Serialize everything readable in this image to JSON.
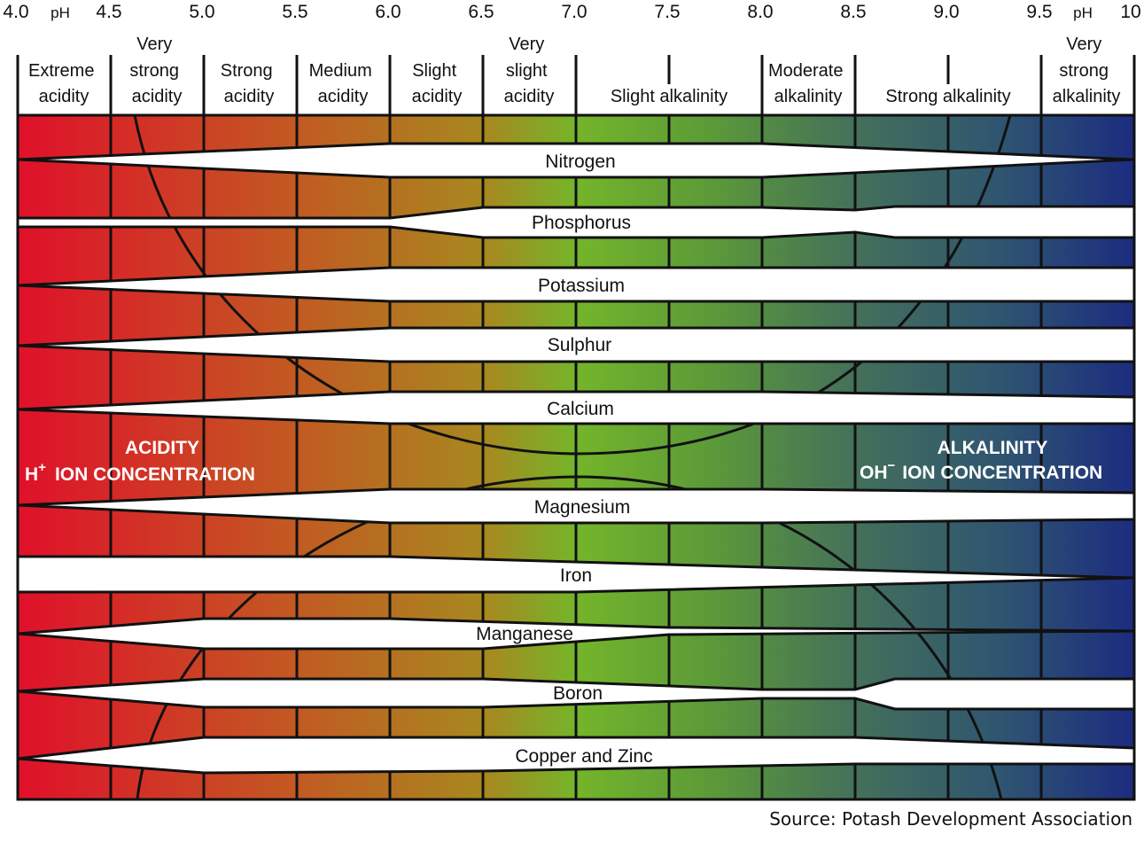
{
  "ph_ticks": [
    "4.0",
    "4.5",
    "5.0",
    "5.5",
    "6.0",
    "6.5",
    "7.0",
    "7.5",
    "8.0",
    "8.5",
    "9.0",
    "9.5",
    "10"
  ],
  "ph_label": "pH",
  "categories": [
    {
      "lines": [
        "Extreme",
        "acidity"
      ]
    },
    {
      "lines": [
        "Very",
        "strong",
        "acidity"
      ]
    },
    {
      "lines": [
        "Strong",
        "acidity"
      ]
    },
    {
      "lines": [
        "Medium",
        "acidity"
      ]
    },
    {
      "lines": [
        "Slight",
        "acidity"
      ]
    },
    {
      "lines": [
        "Very",
        "slight",
        "acidity"
      ]
    },
    {
      "lines": [
        "Slight alkalinity"
      ]
    },
    {
      "lines": [
        "Moderate",
        "alkalinity"
      ]
    },
    {
      "lines": [
        "Strong alkalinity"
      ]
    },
    {
      "lines": [
        "Very",
        "strong",
        "alkalinity"
      ]
    }
  ],
  "nutrients": [
    "Nitrogen",
    "Phosphorus",
    "Potassium",
    "Sulphur",
    "Calcium",
    "Magnesium",
    "Iron",
    "Manganese",
    "Boron",
    "Copper and Zinc"
  ],
  "acidity": {
    "title": "ACIDITY",
    "ion": "H",
    "ion_sup": "+",
    "suffix": "ION CONCENTRATION"
  },
  "alkalinity": {
    "title": "ALKALINITY",
    "ion": "OH",
    "ion_sup": "−",
    "suffix": "ION CONCENTRATION"
  },
  "source": "Source: Potash Development Association",
  "colors": {
    "acid": "#e0102a",
    "mid_orange": "#b8711f",
    "neutral": "#72b728",
    "mid_green": "#4b7a48",
    "alkaline": "#1f2d7a"
  }
}
